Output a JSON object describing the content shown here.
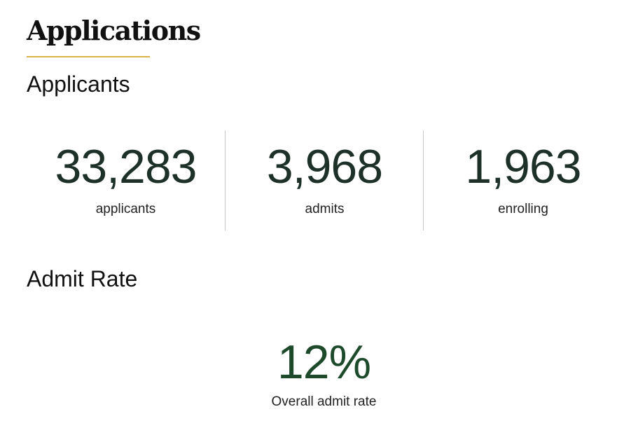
{
  "page": {
    "title": "Applications"
  },
  "applicants_section": {
    "heading": "Applicants",
    "stats": [
      {
        "value": "33,283",
        "label": "applicants"
      },
      {
        "value": "3,968",
        "label": "admits"
      },
      {
        "value": "1,963",
        "label": "enrolling"
      }
    ]
  },
  "admit_rate_section": {
    "heading": "Admit Rate",
    "value": "12%",
    "label": "Overall admit rate"
  },
  "colors": {
    "accent_rule": "#d9b24a",
    "stat_text": "#1d3129",
    "rate_text": "#1e4a2c"
  }
}
